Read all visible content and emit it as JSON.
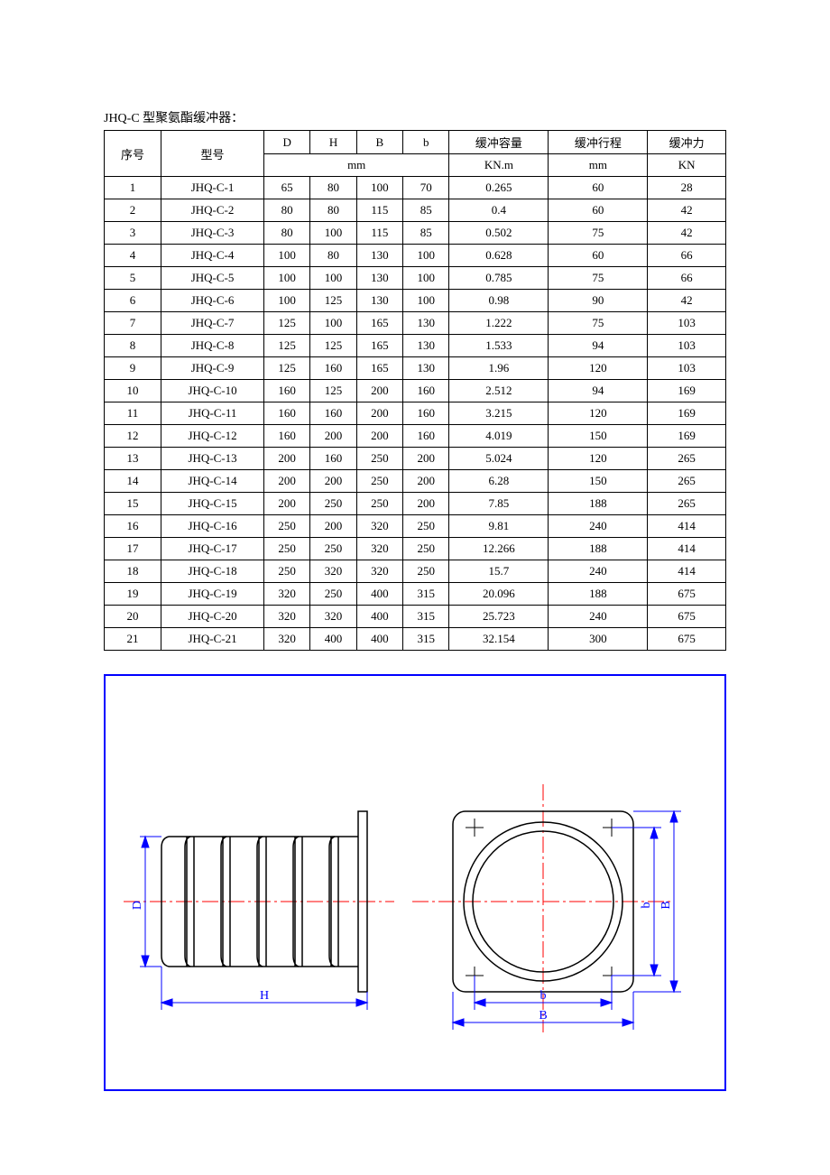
{
  "title": "JHQ-C 型聚氨酯缓冲器：",
  "table": {
    "header_row1": [
      "序号",
      "型号",
      "D",
      "H",
      "B",
      "b",
      "缓冲容量",
      "缓冲行程",
      "缓冲力"
    ],
    "header_row2_unit_mm": "mm",
    "header_row2_unit_knm": "KN.m",
    "header_row2_unit_mm2": "mm",
    "header_row2_unit_kn": "KN",
    "rows": [
      [
        "1",
        "JHQ-C-1",
        "65",
        "80",
        "100",
        "70",
        "0.265",
        "60",
        "28"
      ],
      [
        "2",
        "JHQ-C-2",
        "80",
        "80",
        "115",
        "85",
        "0.4",
        "60",
        "42"
      ],
      [
        "3",
        "JHQ-C-3",
        "80",
        "100",
        "115",
        "85",
        "0.502",
        "75",
        "42"
      ],
      [
        "4",
        "JHQ-C-4",
        "100",
        "80",
        "130",
        "100",
        "0.628",
        "60",
        "66"
      ],
      [
        "5",
        "JHQ-C-5",
        "100",
        "100",
        "130",
        "100",
        "0.785",
        "75",
        "66"
      ],
      [
        "6",
        "JHQ-C-6",
        "100",
        "125",
        "130",
        "100",
        "0.98",
        "90",
        "42"
      ],
      [
        "7",
        "JHQ-C-7",
        "125",
        "100",
        "165",
        "130",
        "1.222",
        "75",
        "103"
      ],
      [
        "8",
        "JHQ-C-8",
        "125",
        "125",
        "165",
        "130",
        "1.533",
        "94",
        "103"
      ],
      [
        "9",
        "JHQ-C-9",
        "125",
        "160",
        "165",
        "130",
        "1.96",
        "120",
        "103"
      ],
      [
        "10",
        "JHQ-C-10",
        "160",
        "125",
        "200",
        "160",
        "2.512",
        "94",
        "169"
      ],
      [
        "11",
        "JHQ-C-11",
        "160",
        "160",
        "200",
        "160",
        "3.215",
        "120",
        "169"
      ],
      [
        "12",
        "JHQ-C-12",
        "160",
        "200",
        "200",
        "160",
        "4.019",
        "150",
        "169"
      ],
      [
        "13",
        "JHQ-C-13",
        "200",
        "160",
        "250",
        "200",
        "5.024",
        "120",
        "265"
      ],
      [
        "14",
        "JHQ-C-14",
        "200",
        "200",
        "250",
        "200",
        "6.28",
        "150",
        "265"
      ],
      [
        "15",
        "JHQ-C-15",
        "200",
        "250",
        "250",
        "200",
        "7.85",
        "188",
        "265"
      ],
      [
        "16",
        "JHQ-C-16",
        "250",
        "200",
        "320",
        "250",
        "9.81",
        "240",
        "414"
      ],
      [
        "17",
        "JHQ-C-17",
        "250",
        "250",
        "320",
        "250",
        "12.266",
        "188",
        "414"
      ],
      [
        "18",
        "JHQ-C-18",
        "250",
        "320",
        "320",
        "250",
        "15.7",
        "240",
        "414"
      ],
      [
        "19",
        "JHQ-C-19",
        "320",
        "250",
        "400",
        "315",
        "20.096",
        "188",
        "675"
      ],
      [
        "20",
        "JHQ-C-20",
        "320",
        "320",
        "400",
        "315",
        "25.723",
        "240",
        "675"
      ],
      [
        "21",
        "JHQ-C-21",
        "320",
        "400",
        "400",
        "315",
        "32.154",
        "300",
        "675"
      ]
    ]
  },
  "diagram": {
    "border_color": "#0000ff",
    "dim_color": "#0000ff",
    "centerline_color": "#ff0000",
    "part_stroke": "#000000",
    "part_fill": "#ffffff",
    "labels": {
      "D": "D",
      "H": "H",
      "b": "b",
      "B": "B",
      "b2": "b"
    },
    "font_size": 14
  }
}
